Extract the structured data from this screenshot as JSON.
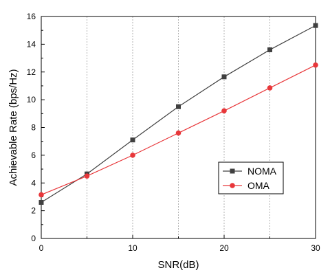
{
  "chart_data": {
    "type": "line",
    "title": "",
    "xlabel": "SNR(dB)",
    "ylabel": "Achievable Rate (bps/Hz)",
    "xlim": [
      0,
      30
    ],
    "ylim": [
      0,
      16
    ],
    "xticks": [
      0,
      10,
      20,
      30
    ],
    "yticks": [
      0,
      2,
      4,
      6,
      8,
      10,
      12,
      14,
      16
    ],
    "x_grid_values": [
      0,
      5,
      10,
      15,
      20,
      25,
      30
    ],
    "grid": "vertical-dashed",
    "legend_position": "lower-right",
    "x": [
      0,
      5,
      10,
      15,
      20,
      25,
      30
    ],
    "series": [
      {
        "name": "NOMA",
        "color": "#404040",
        "marker": "square",
        "values": [
          2.6,
          4.65,
          7.1,
          9.5,
          11.65,
          13.6,
          15.35
        ]
      },
      {
        "name": "OMA",
        "color": "#e8373a",
        "marker": "circle",
        "values": [
          3.15,
          4.5,
          6.0,
          7.6,
          9.2,
          10.85,
          12.5
        ]
      }
    ]
  }
}
